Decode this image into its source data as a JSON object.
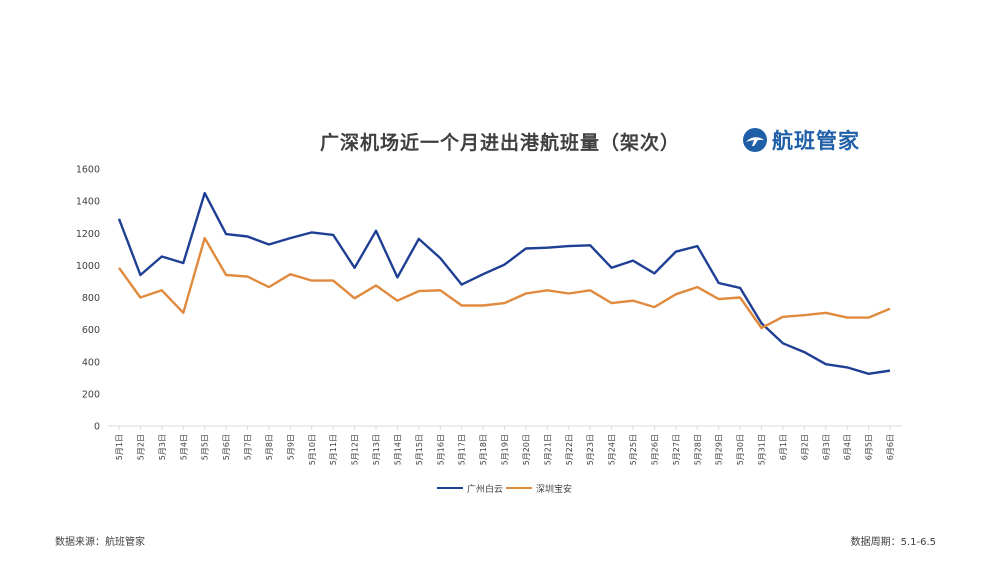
{
  "brand": {
    "name": "航班管家",
    "accent": "#1f5fa8"
  },
  "footer": {
    "source": "数据来源：航班管家",
    "period": "数据周期：5.1-6.5"
  },
  "chart_data": {
    "type": "line",
    "title": "广深机场近一个月进出港航班量（架次）",
    "xlabel": "",
    "ylabel": "",
    "ylim": [
      0,
      1600
    ],
    "yticks": [
      0,
      200,
      400,
      600,
      800,
      1000,
      1200,
      1400,
      1600
    ],
    "grid": false,
    "legend": "bottom",
    "categories": [
      "5月1日",
      "5月2日",
      "5月3日",
      "5月4日",
      "5月5日",
      "5月6日",
      "5月7日",
      "5月8日",
      "5月9日",
      "5月10日",
      "5月11日",
      "5月12日",
      "5月13日",
      "5月14日",
      "5月15日",
      "5月16日",
      "5月17日",
      "5月18日",
      "5月19日",
      "5月20日",
      "5月21日",
      "5月22日",
      "5月23日",
      "5月24日",
      "5月25日",
      "5月26日",
      "5月27日",
      "5月28日",
      "5月29日",
      "5月30日",
      "5月31日",
      "6月1日",
      "6月2日",
      "6月3日",
      "6月4日",
      "6月5日",
      "6月6日"
    ],
    "series": [
      {
        "name": "广州白云",
        "color": "#1f3f94",
        "values": [
          1290,
          940,
          1055,
          1015,
          1450,
          1195,
          1180,
          1130,
          1170,
          1205,
          1190,
          985,
          1215,
          925,
          1165,
          1045,
          880,
          945,
          1005,
          1105,
          1110,
          1120,
          1125,
          985,
          1030,
          950,
          1085,
          1120,
          890,
          860,
          640,
          515,
          460,
          385,
          365,
          325,
          345
        ]
      },
      {
        "name": "深圳宝安",
        "color": "#e08a3e",
        "values": [
          985,
          800,
          845,
          705,
          1170,
          940,
          930,
          865,
          945,
          905,
          905,
          795,
          875,
          780,
          840,
          845,
          750,
          750,
          765,
          825,
          845,
          825,
          845,
          765,
          780,
          740,
          820,
          865,
          790,
          800,
          610,
          680,
          690,
          705,
          675,
          675,
          730
        ]
      }
    ]
  }
}
